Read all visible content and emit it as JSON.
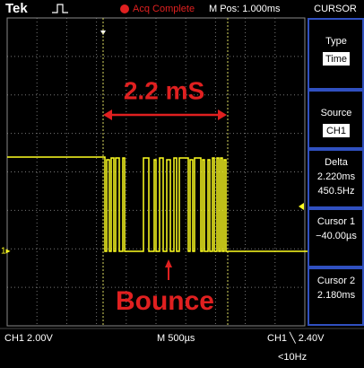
{
  "header": {
    "brand": "Tek",
    "status": "Acq Complete",
    "position": "M Pos: 1.000ms"
  },
  "menu": {
    "title": "CURSOR",
    "items": [
      {
        "label": "Type",
        "value": "Time"
      },
      {
        "label": "Source",
        "value": "CH1"
      },
      {
        "label": "Delta",
        "lines": [
          "2.220ms",
          "450.5Hz"
        ]
      },
      {
        "label": "Cursor 1",
        "lines": [
          "−40.00µs"
        ]
      },
      {
        "label": "Cursor 2",
        "lines": [
          "2.180ms"
        ]
      }
    ]
  },
  "footer": {
    "channel": "CH1 2.00V",
    "timebase": "M 500µs",
    "trigger": "CH1 ╲ 2.40V",
    "frequency": "<10Hz"
  },
  "annotations": {
    "interval": "2.2 mS",
    "label": "Bounce"
  }
}
